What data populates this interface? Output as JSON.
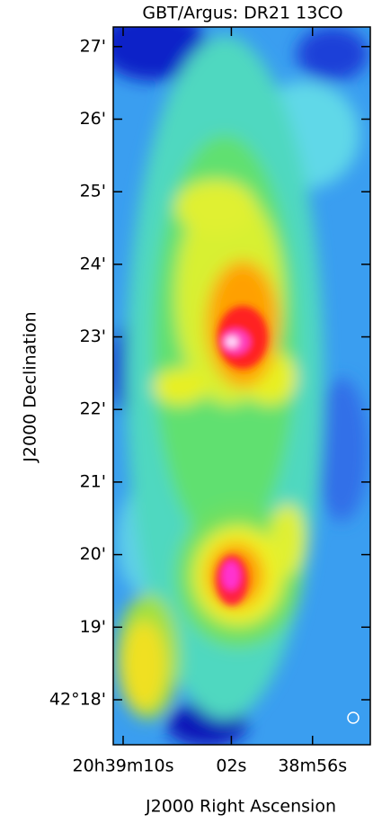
{
  "chart_data": {
    "type": "image",
    "title": "GBT/Argus:  DR21 13CO",
    "xlabel": "J2000 Right Ascension",
    "ylabel": "J2000 Declination",
    "xlim": [
      70.73,
      51.73
    ],
    "xticks": [
      {
        "value": 70,
        "label": "20h39m10s"
      },
      {
        "value": 62,
        "label": "02s"
      },
      {
        "value": 56,
        "label": "38m56s"
      }
    ],
    "ylim": [
      17.38,
      27.27
    ],
    "yticks": [
      {
        "value": 18,
        "label": "42°18'"
      },
      {
        "value": 19,
        "label": "19'"
      },
      {
        "value": 20,
        "label": "20'"
      },
      {
        "value": 21,
        "label": "21'"
      },
      {
        "value": 22,
        "label": "22'"
      },
      {
        "value": 23,
        "label": "23'"
      },
      {
        "value": 24,
        "label": "24'"
      },
      {
        "value": 25,
        "label": "25'"
      },
      {
        "value": 26,
        "label": "26'"
      },
      {
        "value": 27,
        "label": "27'"
      }
    ]
  }
}
